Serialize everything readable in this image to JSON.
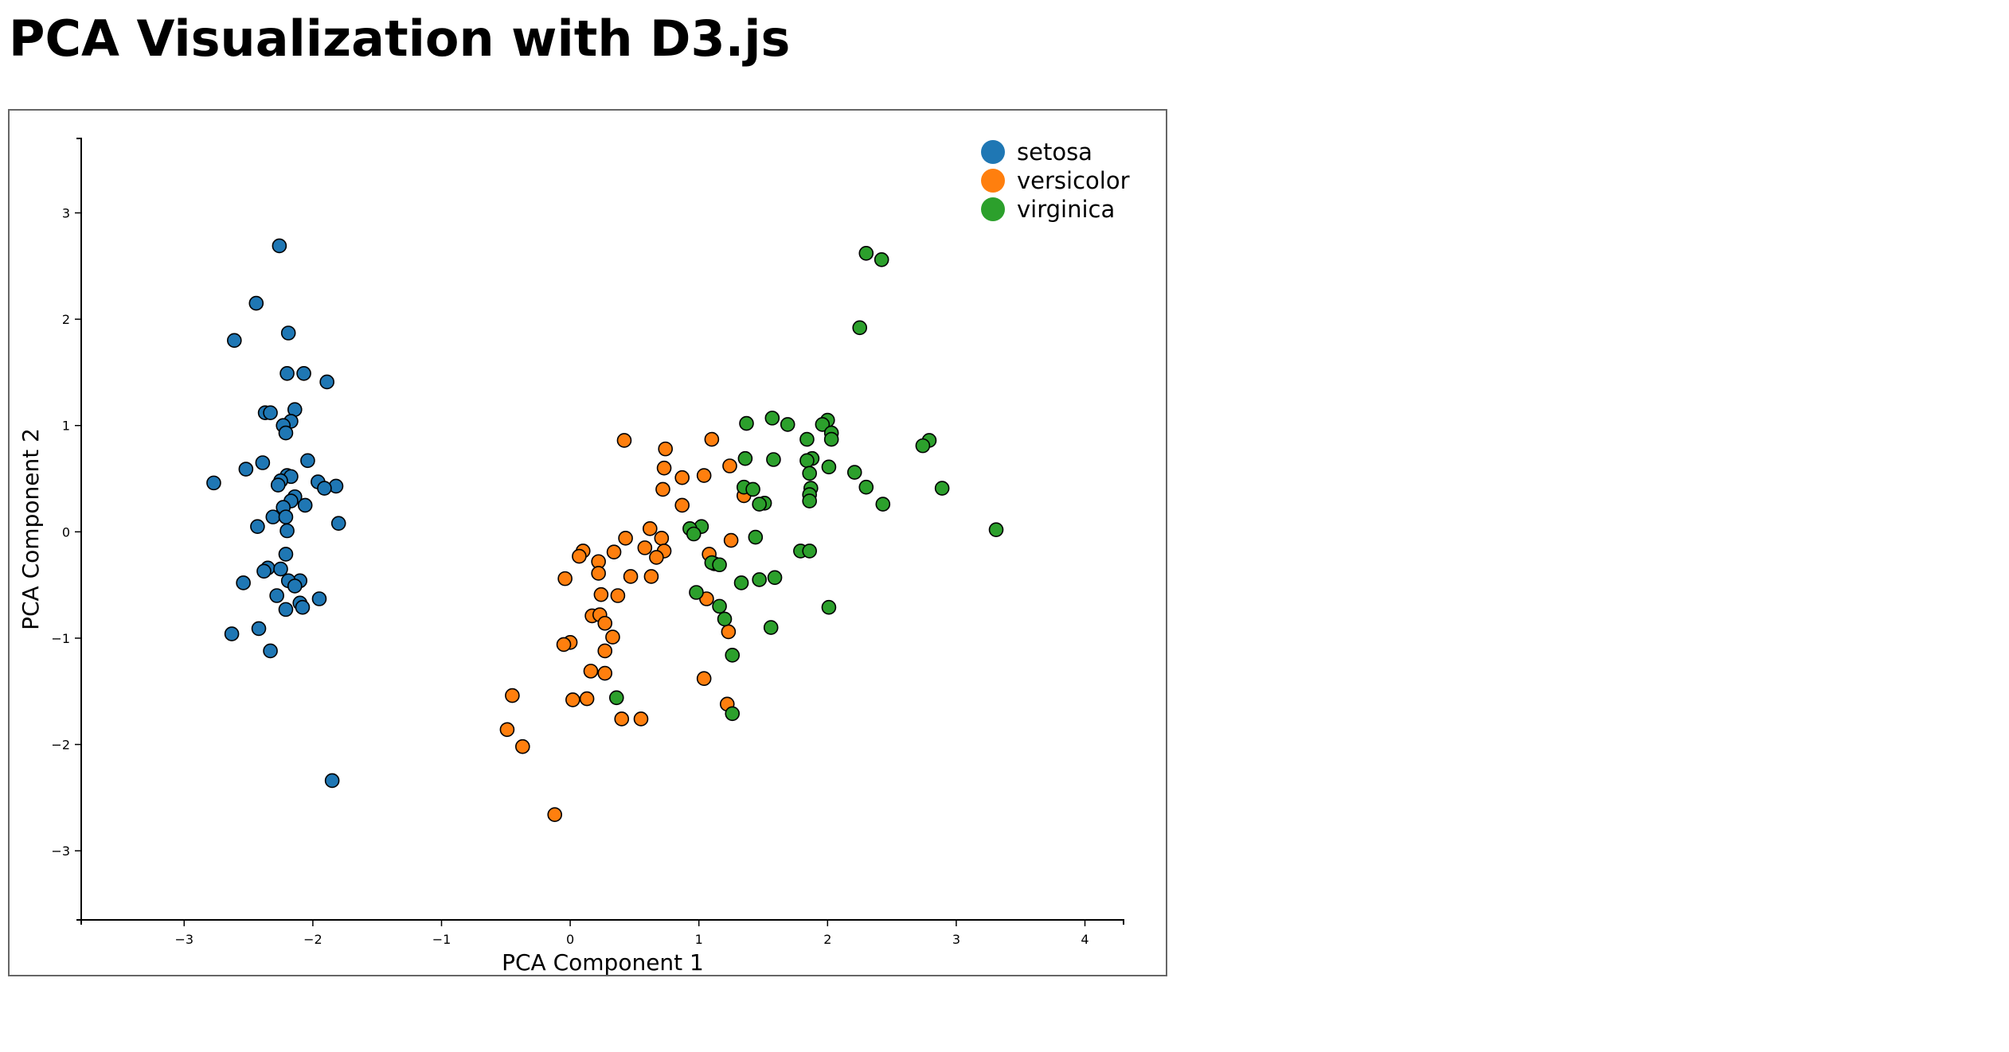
{
  "page": {
    "title": "PCA Visualization with D3.js"
  },
  "chart_data": {
    "type": "scatter",
    "title": "",
    "xlabel": "PCA Component 1",
    "ylabel": "PCA Component 2",
    "xlim": [
      -3.8,
      4.3
    ],
    "ylim": [
      -3.65,
      3.7
    ],
    "xticks": [
      -3,
      -2,
      -1,
      0,
      1,
      2,
      3,
      4
    ],
    "yticks": [
      -3,
      -2,
      -1,
      0,
      1,
      2,
      3
    ],
    "grid": false,
    "legend_position": "top-right",
    "series": [
      {
        "name": "setosa",
        "color": "#1f77b4",
        "points": [
          [
            -2.26,
            2.69
          ],
          [
            -2.44,
            2.15
          ],
          [
            -2.19,
            1.87
          ],
          [
            -2.61,
            1.8
          ],
          [
            -2.2,
            1.49
          ],
          [
            -2.07,
            1.49
          ],
          [
            -1.89,
            1.41
          ],
          [
            -2.37,
            1.12
          ],
          [
            -2.33,
            1.12
          ],
          [
            -2.14,
            1.15
          ],
          [
            -2.17,
            1.04
          ],
          [
            -2.23,
            1.0
          ],
          [
            -2.21,
            0.93
          ],
          [
            -2.04,
            0.67
          ],
          [
            -2.52,
            0.59
          ],
          [
            -2.39,
            0.65
          ],
          [
            -2.2,
            0.53
          ],
          [
            -2.17,
            0.52
          ],
          [
            -2.25,
            0.48
          ],
          [
            -2.27,
            0.44
          ],
          [
            -1.96,
            0.47
          ],
          [
            -1.82,
            0.43
          ],
          [
            -1.91,
            0.41
          ],
          [
            -2.77,
            0.46
          ],
          [
            -2.14,
            0.33
          ],
          [
            -2.17,
            0.29
          ],
          [
            -2.06,
            0.25
          ],
          [
            -2.23,
            0.23
          ],
          [
            -2.31,
            0.14
          ],
          [
            -2.21,
            0.14
          ],
          [
            -1.8,
            0.08
          ],
          [
            -2.43,
            0.05
          ],
          [
            -2.2,
            0.01
          ],
          [
            -2.21,
            -0.21
          ],
          [
            -2.35,
            -0.34
          ],
          [
            -2.38,
            -0.37
          ],
          [
            -2.1,
            -0.46
          ],
          [
            -2.19,
            -0.46
          ],
          [
            -2.14,
            -0.51
          ],
          [
            -2.54,
            -0.48
          ],
          [
            -2.28,
            -0.6
          ],
          [
            -1.95,
            -0.63
          ],
          [
            -2.1,
            -0.67
          ],
          [
            -2.08,
            -0.71
          ],
          [
            -2.21,
            -0.73
          ],
          [
            -2.42,
            -0.91
          ],
          [
            -2.63,
            -0.96
          ],
          [
            -2.33,
            -1.12
          ],
          [
            -1.85,
            -2.34
          ],
          [
            -2.25,
            -0.35
          ]
        ]
      },
      {
        "name": "versicolor",
        "color": "#ff7f0e",
        "points": [
          [
            0.42,
            0.86
          ],
          [
            1.1,
            0.87
          ],
          [
            0.74,
            0.78
          ],
          [
            1.24,
            0.62
          ],
          [
            0.73,
            0.6
          ],
          [
            1.04,
            0.53
          ],
          [
            0.87,
            0.51
          ],
          [
            0.72,
            0.4
          ],
          [
            1.35,
            0.34
          ],
          [
            0.87,
            0.25
          ],
          [
            0.62,
            0.03
          ],
          [
            0.43,
            -0.06
          ],
          [
            0.71,
            -0.06
          ],
          [
            1.25,
            -0.08
          ],
          [
            0.58,
            -0.15
          ],
          [
            0.1,
            -0.18
          ],
          [
            0.34,
            -0.19
          ],
          [
            0.73,
            -0.18
          ],
          [
            0.67,
            -0.24
          ],
          [
            1.08,
            -0.21
          ],
          [
            0.07,
            -0.23
          ],
          [
            0.22,
            -0.28
          ],
          [
            1.12,
            -0.3
          ],
          [
            0.22,
            -0.39
          ],
          [
            0.63,
            -0.42
          ],
          [
            0.47,
            -0.42
          ],
          [
            -0.04,
            -0.44
          ],
          [
            0.24,
            -0.59
          ],
          [
            0.37,
            -0.6
          ],
          [
            1.06,
            -0.63
          ],
          [
            0.17,
            -0.79
          ],
          [
            0.23,
            -0.78
          ],
          [
            0.27,
            -0.86
          ],
          [
            1.23,
            -0.94
          ],
          [
            0.33,
            -0.99
          ],
          [
            0.0,
            -1.04
          ],
          [
            -0.05,
            -1.06
          ],
          [
            0.27,
            -1.12
          ],
          [
            0.16,
            -1.31
          ],
          [
            0.27,
            -1.33
          ],
          [
            1.04,
            -1.38
          ],
          [
            -0.45,
            -1.54
          ],
          [
            0.02,
            -1.58
          ],
          [
            0.13,
            -1.57
          ],
          [
            1.22,
            -1.62
          ],
          [
            0.4,
            -1.76
          ],
          [
            0.55,
            -1.76
          ],
          [
            -0.49,
            -1.86
          ],
          [
            -0.37,
            -2.02
          ],
          [
            -0.12,
            -2.66
          ]
        ]
      },
      {
        "name": "virginica",
        "color": "#2ca02c",
        "points": [
          [
            2.3,
            2.62
          ],
          [
            2.42,
            2.56
          ],
          [
            2.25,
            1.92
          ],
          [
            1.57,
            1.07
          ],
          [
            1.37,
            1.02
          ],
          [
            1.69,
            1.01
          ],
          [
            2.0,
            1.05
          ],
          [
            1.96,
            1.01
          ],
          [
            2.03,
            0.93
          ],
          [
            2.03,
            0.87
          ],
          [
            1.84,
            0.87
          ],
          [
            2.79,
            0.86
          ],
          [
            2.74,
            0.81
          ],
          [
            1.88,
            0.69
          ],
          [
            1.36,
            0.69
          ],
          [
            1.58,
            0.68
          ],
          [
            1.84,
            0.67
          ],
          [
            2.01,
            0.61
          ],
          [
            1.86,
            0.55
          ],
          [
            2.21,
            0.56
          ],
          [
            1.35,
            0.42
          ],
          [
            2.3,
            0.42
          ],
          [
            1.87,
            0.41
          ],
          [
            2.89,
            0.41
          ],
          [
            1.86,
            0.35
          ],
          [
            1.51,
            0.27
          ],
          [
            1.47,
            0.26
          ],
          [
            1.86,
            0.29
          ],
          [
            2.43,
            0.26
          ],
          [
            1.02,
            0.05
          ],
          [
            0.93,
            0.03
          ],
          [
            0.96,
            -0.02
          ],
          [
            3.31,
            0.02
          ],
          [
            1.44,
            -0.05
          ],
          [
            1.79,
            -0.18
          ],
          [
            1.86,
            -0.18
          ],
          [
            1.1,
            -0.29
          ],
          [
            1.16,
            -0.31
          ],
          [
            1.59,
            -0.43
          ],
          [
            1.47,
            -0.45
          ],
          [
            1.33,
            -0.48
          ],
          [
            0.98,
            -0.57
          ],
          [
            1.16,
            -0.7
          ],
          [
            2.01,
            -0.71
          ],
          [
            1.2,
            -0.82
          ],
          [
            1.56,
            -0.9
          ],
          [
            1.26,
            -1.16
          ],
          [
            0.36,
            -1.56
          ],
          [
            1.26,
            -1.71
          ],
          [
            1.42,
            0.4
          ]
        ]
      }
    ]
  }
}
